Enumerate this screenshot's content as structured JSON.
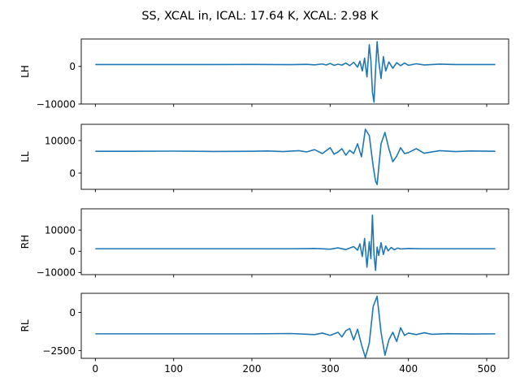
{
  "title": "SS, XCAL in, ICAL: 17.64 K, XCAL: 2.98 K",
  "colors": {
    "line": "#1f77b4"
  },
  "chart_data": [
    {
      "type": "line",
      "ylabel": "LH",
      "xlim": [
        -18,
        528
      ],
      "ylim": [
        -10000,
        7300
      ],
      "xticks": [],
      "yticks": [
        0,
        -10000
      ],
      "ytick_labels": [
        "0",
        "−10000"
      ],
      "series": [
        {
          "x": [
            0,
            50,
            100,
            150,
            200,
            250,
            270,
            280,
            290,
            295,
            300,
            305,
            310,
            315,
            320,
            325,
            330,
            335,
            338,
            341,
            344,
            347,
            350,
            352,
            354,
            356,
            358,
            360,
            362,
            365,
            368,
            371,
            375,
            380,
            385,
            390,
            395,
            400,
            410,
            420,
            440,
            460,
            480,
            511
          ],
          "y": [
            500,
            500,
            500,
            500,
            520,
            480,
            560,
            420,
            650,
            380,
            800,
            300,
            600,
            350,
            900,
            200,
            1100,
            -200,
            1400,
            -1200,
            2200,
            -2800,
            5800,
            1500,
            -6800,
            -9500,
            -1000,
            6600,
            1500,
            -3200,
            2600,
            -1200,
            1200,
            -500,
            1000,
            200,
            900,
            300,
            700,
            400,
            600,
            500,
            500,
            500
          ]
        }
      ]
    },
    {
      "type": "line",
      "ylabel": "LL",
      "xlim": [
        -18,
        528
      ],
      "ylim": [
        -5000,
        15000
      ],
      "xticks": [],
      "yticks": [
        10000,
        0
      ],
      "ytick_labels": [
        "10000",
        "0"
      ],
      "series": [
        {
          "x": [
            0,
            50,
            100,
            150,
            200,
            220,
            240,
            260,
            270,
            280,
            290,
            300,
            305,
            310,
            315,
            320,
            325,
            330,
            335,
            340,
            345,
            350,
            355,
            358,
            360,
            365,
            370,
            375,
            380,
            385,
            390,
            395,
            400,
            410,
            420,
            440,
            460,
            480,
            511
          ],
          "y": [
            6700,
            6700,
            6750,
            6650,
            6700,
            6800,
            6600,
            6900,
            6500,
            7200,
            6000,
            7800,
            5800,
            6500,
            7500,
            5500,
            7000,
            6000,
            9000,
            5000,
            13500,
            11500,
            2000,
            -2500,
            -3500,
            9000,
            12500,
            7500,
            3500,
            5200,
            7800,
            6000,
            6300,
            7500,
            6100,
            6900,
            6600,
            6800,
            6700
          ]
        }
      ]
    },
    {
      "type": "line",
      "ylabel": "RH",
      "xlim": [
        -18,
        528
      ],
      "ylim": [
        -11000,
        20000
      ],
      "xticks": [],
      "yticks": [
        10000,
        0,
        -10000
      ],
      "ytick_labels": [
        "10000",
        "0",
        "−10000"
      ],
      "series": [
        {
          "x": [
            0,
            50,
            100,
            150,
            200,
            250,
            280,
            300,
            310,
            320,
            330,
            335,
            338,
            341,
            344,
            347,
            350,
            352,
            354,
            356,
            358,
            360,
            362,
            365,
            368,
            371,
            374,
            378,
            382,
            386,
            390,
            400,
            420,
            450,
            480,
            511
          ],
          "y": [
            1200,
            1200,
            1200,
            1200,
            1200,
            1200,
            1300,
            1000,
            1600,
            800,
            2200,
            500,
            3500,
            -2500,
            6000,
            -7500,
            4500,
            -3500,
            17000,
            -1500,
            -9000,
            2000,
            -2000,
            4000,
            -1500,
            2500,
            200,
            1800,
            700,
            1500,
            1100,
            1300,
            1200,
            1200,
            1200,
            1200
          ]
        }
      ]
    },
    {
      "type": "line",
      "ylabel": "RL",
      "xlim": [
        -18,
        528
      ],
      "ylim": [
        -3000,
        1250
      ],
      "xticks": [
        0,
        100,
        200,
        300,
        400,
        500
      ],
      "yticks": [
        0,
        -2500
      ],
      "ytick_labels": [
        "0",
        "−2500"
      ],
      "series": [
        {
          "x": [
            0,
            50,
            100,
            150,
            200,
            250,
            280,
            290,
            300,
            310,
            315,
            320,
            325,
            330,
            335,
            340,
            345,
            350,
            355,
            360,
            365,
            370,
            375,
            380,
            385,
            390,
            395,
            400,
            410,
            420,
            430,
            450,
            480,
            511
          ],
          "y": [
            -1400,
            -1400,
            -1400,
            -1400,
            -1400,
            -1380,
            -1450,
            -1350,
            -1500,
            -1300,
            -1600,
            -1200,
            -1050,
            -1800,
            -1100,
            -2100,
            -2950,
            -2000,
            400,
            1050,
            -1300,
            -2800,
            -1800,
            -1300,
            -1900,
            -1000,
            -1500,
            -1350,
            -1450,
            -1330,
            -1430,
            -1390,
            -1410,
            -1400
          ]
        }
      ]
    }
  ]
}
